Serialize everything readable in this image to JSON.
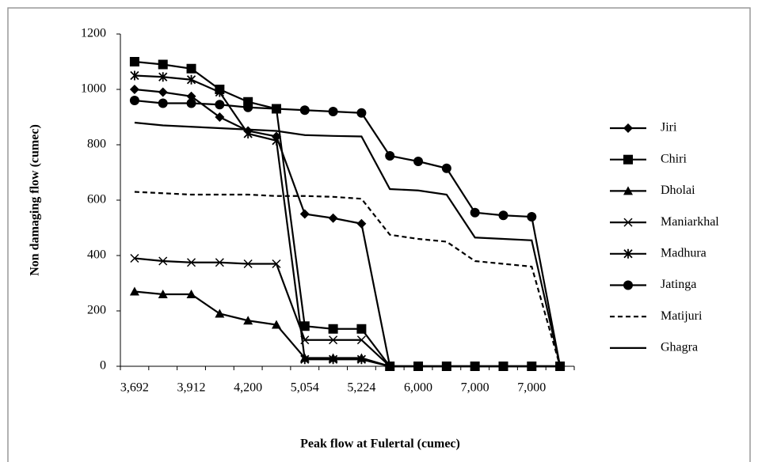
{
  "chart_data": {
    "type": "line",
    "y_label": "Non damaging flow (cumec)",
    "x_label": "Peak flow at Fulertal (cumec)",
    "categories": [
      "3,692",
      null,
      "3,912",
      null,
      "4,200",
      null,
      "5,054",
      null,
      "5,224",
      null,
      "6,000",
      null,
      "7,000",
      null,
      "7,000",
      null
    ],
    "ylim": [
      0,
      1200
    ],
    "yticks": [
      0,
      200,
      400,
      600,
      800,
      1000,
      1200
    ],
    "legend": "right",
    "series": [
      {
        "name": "Jiri",
        "color": "#000000",
        "marker": "diamond",
        "values": [
          1000,
          990,
          975,
          900,
          850,
          830,
          550,
          535,
          515,
          0,
          0,
          0,
          0,
          0,
          0,
          0
        ]
      },
      {
        "name": "Chiri",
        "color": "#000000",
        "marker": "square",
        "values": [
          1100,
          1090,
          1075,
          1000,
          955,
          930,
          145,
          135,
          135,
          0,
          0,
          0,
          0,
          0,
          0,
          0
        ]
      },
      {
        "name": "Dholai",
        "color": "#000000",
        "marker": "triangle",
        "values": [
          270,
          260,
          260,
          190,
          165,
          150,
          30,
          30,
          30,
          0,
          0,
          0,
          0,
          0,
          0,
          0
        ]
      },
      {
        "name": "Maniarkhal",
        "color": "#000000",
        "marker": "x",
        "values": [
          390,
          380,
          375,
          375,
          370,
          370,
          95,
          95,
          95,
          0,
          0,
          0,
          0,
          0,
          0,
          0
        ]
      },
      {
        "name": "Madhura",
        "color": "#000000",
        "marker": "star",
        "values": [
          1050,
          1045,
          1035,
          990,
          840,
          815,
          25,
          25,
          25,
          0,
          0,
          0,
          0,
          0,
          0,
          0
        ]
      },
      {
        "name": "Jatinga",
        "color": "#000000",
        "marker": "circle",
        "values": [
          960,
          950,
          950,
          945,
          935,
          930,
          925,
          920,
          915,
          760,
          740,
          715,
          555,
          545,
          540,
          0
        ]
      },
      {
        "name": "Matijuri",
        "color": "#000000",
        "dash": true,
        "values": [
          630,
          625,
          620,
          620,
          620,
          615,
          615,
          612,
          605,
          475,
          460,
          450,
          380,
          370,
          360,
          0
        ]
      },
      {
        "name": "Ghagra",
        "color": "#000000",
        "values": [
          880,
          870,
          865,
          860,
          855,
          850,
          835,
          832,
          830,
          640,
          635,
          620,
          465,
          460,
          455,
          0
        ]
      }
    ]
  }
}
